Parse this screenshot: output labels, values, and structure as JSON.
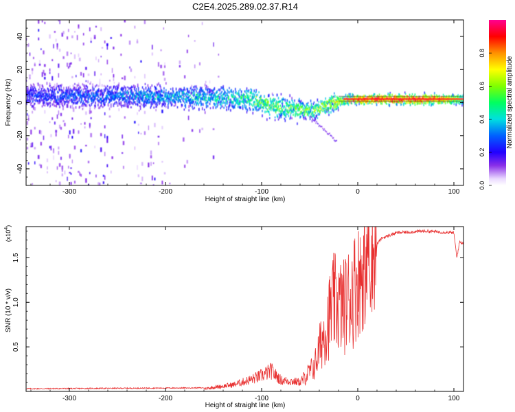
{
  "title": "C2E4.2025.289.02.37.R14",
  "chart_data": [
    {
      "type": "heatmap",
      "name": "spectrogram",
      "xlabel": "Height of straight line (km)",
      "ylabel": "Frequency (Hz)",
      "xlim": [
        -345,
        110
      ],
      "ylim": [
        -50,
        50
      ],
      "xticks": [
        -300,
        -200,
        -100,
        0,
        100
      ],
      "yticks": [
        -40,
        -20,
        0,
        20,
        40
      ],
      "colorbar": {
        "label": "Normalized spectral amplitude",
        "range": [
          0,
          1
        ],
        "ticks": [
          "0.0",
          "0.2",
          "0.4",
          "0.6",
          "0.8"
        ],
        "tick_values": [
          0.0,
          0.2,
          0.4,
          0.6,
          0.8
        ]
      },
      "ridge_center": [
        {
          "x": -330,
          "f": 4
        },
        {
          "x": -250,
          "f": 4
        },
        {
          "x": -150,
          "f": 3
        },
        {
          "x": -110,
          "f": 2
        },
        {
          "x": -90,
          "f": -2
        },
        {
          "x": -65,
          "f": -4
        },
        {
          "x": -45,
          "f": -5
        },
        {
          "x": -30,
          "f": -1
        },
        {
          "x": -10,
          "f": 2
        },
        {
          "x": 10,
          "f": 2
        },
        {
          "x": 110,
          "f": 2
        }
      ],
      "ridge_amplitude": [
        {
          "x": -345,
          "a": 0.25
        },
        {
          "x": -200,
          "a": 0.35
        },
        {
          "x": -130,
          "a": 0.45
        },
        {
          "x": -90,
          "a": 0.55
        },
        {
          "x": -50,
          "a": 0.55
        },
        {
          "x": -30,
          "a": 0.65
        },
        {
          "x": -10,
          "a": 0.75
        },
        {
          "x": 10,
          "a": 0.9
        },
        {
          "x": 80,
          "a": 0.9
        },
        {
          "x": 110,
          "a": 0.55
        }
      ]
    },
    {
      "type": "line",
      "name": "snr",
      "xlabel": "Height of straight line (km)",
      "ylabel": "SNR (10 * v/v)",
      "scale_label": "(x10^4)",
      "scale_text": "(x10",
      "scale_exp": "4",
      "xlim": [
        -345,
        110
      ],
      "ylim": [
        0,
        1.85
      ],
      "xticks": [
        -300,
        -200,
        -100,
        0,
        100
      ],
      "yticks": [
        "0.5",
        "1.0",
        "1.5"
      ],
      "ytick_values": [
        0.5,
        1.0,
        1.5
      ],
      "series": [
        {
          "name": "SNR",
          "color": "#e83030",
          "baseline": [
            {
              "x": -345,
              "y": 0.02
            },
            {
              "x": -160,
              "y": 0.03
            },
            {
              "x": -130,
              "y": 0.07
            },
            {
              "x": -110,
              "y": 0.13
            },
            {
              "x": -100,
              "y": 0.17
            },
            {
              "x": -90,
              "y": 0.22
            },
            {
              "x": -80,
              "y": 0.12
            },
            {
              "x": -60,
              "y": 0.1
            },
            {
              "x": -45,
              "y": 0.3
            },
            {
              "x": -35,
              "y": 0.7
            },
            {
              "x": -25,
              "y": 1.05
            },
            {
              "x": -15,
              "y": 1.0
            },
            {
              "x": -5,
              "y": 1.2
            },
            {
              "x": 5,
              "y": 1.4
            },
            {
              "x": 12,
              "y": 1.55
            },
            {
              "x": 25,
              "y": 1.72
            },
            {
              "x": 40,
              "y": 1.78
            },
            {
              "x": 70,
              "y": 1.8
            },
            {
              "x": 100,
              "y": 1.78
            },
            {
              "x": 103,
              "y": 1.5
            },
            {
              "x": 106,
              "y": 1.68
            },
            {
              "x": 110,
              "y": 1.66
            }
          ]
        }
      ]
    }
  ]
}
